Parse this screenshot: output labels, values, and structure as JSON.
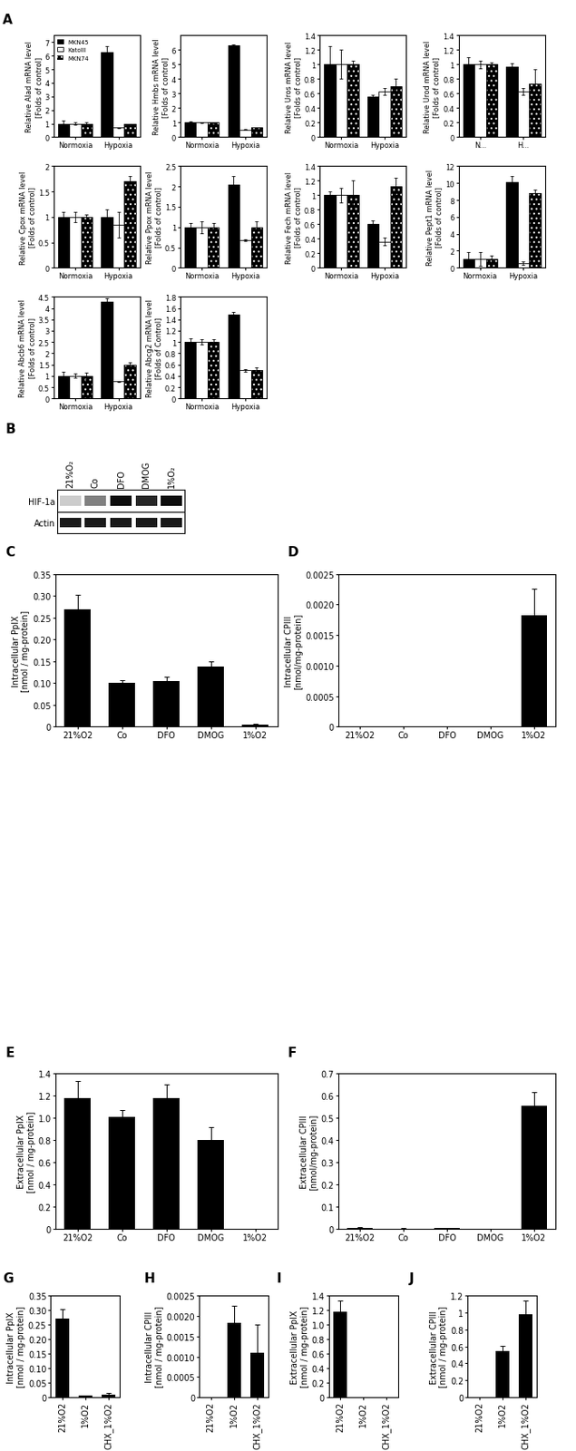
{
  "chart_data": [
    {
      "type": "bar",
      "categories": [
        "Normoxia",
        "Hypoxia"
      ],
      "ylabel": "Relative Alad mRNA level\n[Folds of control]",
      "ylim": [
        0,
        7.5
      ],
      "yticks": [
        0,
        1,
        2,
        3,
        4,
        5,
        6,
        7
      ],
      "legend": "upper left",
      "series": [
        {
          "name": "MKN45",
          "color": "#000000",
          "values": [
            1,
            6.3
          ],
          "errors": [
            0.2,
            0.4
          ]
        },
        {
          "name": "KatoIII",
          "color": "#ffffff",
          "values": [
            1,
            0.7
          ],
          "errors": [
            0.1,
            0.05
          ]
        },
        {
          "name": "MKN74",
          "color": "#000000",
          "values": [
            1,
            0.95
          ],
          "errors": [
            0.1,
            0.05
          ]
        }
      ]
    },
    {
      "type": "bar",
      "categories": [
        "Normoxia",
        "Hypoxia"
      ],
      "ylabel": "Relative Hmbs mRNA level\n[Folds of control]",
      "ylim": [
        0,
        7
      ],
      "yticks": [
        0,
        1,
        2,
        3,
        4,
        5,
        6
      ],
      "series": [
        {
          "color": "#000000",
          "values": [
            1,
            6.3
          ],
          "errors": [
            0.08,
            0.1
          ]
        },
        {
          "color": "#ffffff",
          "values": [
            1,
            0.5
          ],
          "errors": [
            0.05,
            0.03
          ]
        },
        {
          "color": "#000000",
          "values": [
            1,
            0.65
          ],
          "errors": [
            0.05,
            0.03
          ]
        }
      ]
    },
    {
      "type": "bar",
      "categories": [
        "Normoxia",
        "Hypoxia"
      ],
      "ylabel": "Relative Uros mRNA level\n[Folds of control]",
      "ylim": [
        0,
        1.4
      ],
      "yticks": [
        0,
        0.2,
        0.4,
        0.6,
        0.8,
        1,
        1.2,
        1.4
      ],
      "series": [
        {
          "color": "#000000",
          "values": [
            1,
            0.56
          ],
          "errors": [
            0.25,
            0.02
          ]
        },
        {
          "color": "#ffffff",
          "values": [
            1,
            0.63
          ],
          "errors": [
            0.2,
            0.05
          ]
        },
        {
          "color": "#000000",
          "values": [
            1,
            0.7
          ],
          "errors": [
            0.05,
            0.1
          ]
        }
      ]
    },
    {
      "type": "bar",
      "categories": [
        "N...",
        "H..."
      ],
      "ylabel": "Relative Urod mRNA level\n[Folds of control]",
      "ylim": [
        0,
        1.4
      ],
      "yticks": [
        0,
        0.2,
        0.4,
        0.6,
        0.8,
        1,
        1.2,
        1.4
      ],
      "series": [
        {
          "color": "#000000",
          "values": [
            1,
            0.97
          ],
          "errors": [
            0.1,
            0.05
          ]
        },
        {
          "color": "#ffffff",
          "values": [
            1,
            0.63
          ],
          "errors": [
            0.05,
            0.05
          ]
        },
        {
          "color": "#000000",
          "values": [
            1,
            0.73
          ],
          "errors": [
            0.03,
            0.2
          ]
        }
      ]
    },
    {
      "type": "bar",
      "categories": [
        "Normoxia",
        "Hypoxia"
      ],
      "ylabel": "Relative Cpox mRNA level\n[Folds of control]",
      "ylim": [
        0,
        2
      ],
      "yticks": [
        0,
        0.5,
        1,
        1.5,
        2
      ],
      "series": [
        {
          "color": "#000000",
          "values": [
            1,
            1
          ],
          "errors": [
            0.1,
            0.15
          ]
        },
        {
          "color": "#ffffff",
          "values": [
            1,
            0.85
          ],
          "errors": [
            0.1,
            0.25
          ]
        },
        {
          "color": "#000000",
          "values": [
            1,
            1.7
          ],
          "errors": [
            0.05,
            0.1
          ]
        }
      ]
    },
    {
      "type": "bar",
      "categories": [
        "Normoxia",
        "Hypoxia"
      ],
      "ylabel": "Relative Ppox mRNA level\n[Folds of control]",
      "ylim": [
        0,
        2.5
      ],
      "yticks": [
        0,
        0.5,
        1,
        1.5,
        2,
        2.5
      ],
      "series": [
        {
          "color": "#000000",
          "values": [
            1,
            2.05
          ],
          "errors": [
            0.1,
            0.2
          ]
        },
        {
          "color": "#ffffff",
          "values": [
            1,
            0.68
          ],
          "errors": [
            0.15,
            0.02
          ]
        },
        {
          "color": "#000000",
          "values": [
            1,
            1.0
          ],
          "errors": [
            0.1,
            0.15
          ]
        }
      ]
    },
    {
      "type": "bar",
      "categories": [
        "Normoxia",
        "Hypoxia"
      ],
      "ylabel": "Relative Fech mRNA level\n[Folds of control]",
      "ylim": [
        0,
        1.4
      ],
      "yticks": [
        0,
        0.2,
        0.4,
        0.6,
        0.8,
        1,
        1.2,
        1.4
      ],
      "series": [
        {
          "color": "#000000",
          "values": [
            1,
            0.6
          ],
          "errors": [
            0.05,
            0.05
          ]
        },
        {
          "color": "#ffffff",
          "values": [
            1,
            0.36
          ],
          "errors": [
            0.1,
            0.05
          ]
        },
        {
          "color": "#000000",
          "values": [
            1,
            1.12
          ],
          "errors": [
            0.2,
            0.12
          ]
        }
      ]
    },
    {
      "type": "bar",
      "categories": [
        "Normoxia",
        "Hypoxia"
      ],
      "ylabel": "Relative Pept1 mRNA level\n[Folds of control]",
      "ylim": [
        0,
        12
      ],
      "yticks": [
        0,
        2,
        4,
        6,
        8,
        10,
        12
      ],
      "series": [
        {
          "color": "#000000",
          "values": [
            1,
            10.1
          ],
          "errors": [
            0.8,
            0.7
          ]
        },
        {
          "color": "#ffffff",
          "values": [
            1,
            0.5
          ],
          "errors": [
            0.8,
            0.2
          ]
        },
        {
          "color": "#000000",
          "values": [
            1,
            8.8
          ],
          "errors": [
            0.4,
            0.4
          ]
        }
      ]
    },
    {
      "type": "bar",
      "categories": [
        "Normoxia",
        "Hypoxia"
      ],
      "ylabel": "Relative Abcb6 mRNA level\n[Folds of control]",
      "ylim": [
        0,
        4.5
      ],
      "yticks": [
        0,
        0.5,
        1,
        1.5,
        2,
        2.5,
        3,
        3.5,
        4,
        4.5
      ],
      "series": [
        {
          "color": "#000000",
          "values": [
            1,
            4.3
          ],
          "errors": [
            0.2,
            0.15
          ]
        },
        {
          "color": "#ffffff",
          "values": [
            1,
            0.75
          ],
          "errors": [
            0.1,
            0.03
          ]
        },
        {
          "color": "#000000",
          "values": [
            1,
            1.5
          ],
          "errors": [
            0.15,
            0.08
          ]
        }
      ]
    },
    {
      "type": "bar",
      "categories": [
        "Normoxia",
        "Hypoxia"
      ],
      "ylabel": "Relative Abcg2 mRNA level\n[Folds of Control]",
      "ylim": [
        0,
        1.8
      ],
      "yticks": [
        0,
        0.2,
        0.4,
        0.6,
        0.8,
        1,
        1.2,
        1.4,
        1.6,
        1.8
      ],
      "series": [
        {
          "color": "#000000",
          "values": [
            1,
            1.48
          ],
          "errors": [
            0.07,
            0.05
          ]
        },
        {
          "color": "#ffffff",
          "values": [
            1,
            0.5
          ],
          "errors": [
            0.05,
            0.02
          ]
        },
        {
          "color": "#000000",
          "values": [
            1,
            0.5
          ],
          "errors": [
            0.05,
            0.05
          ]
        }
      ]
    },
    {
      "type": "bar",
      "categories": [
        "21%O2",
        "Co",
        "DFO",
        "DMOG",
        "1%O2"
      ],
      "ylabel": "Intracellular PpIX\n[nmol / mg-protein]",
      "color": "#000000",
      "values": [
        0.27,
        0.1,
        0.105,
        0.138,
        0.005
      ],
      "errors": [
        0.033,
        0.007,
        0.01,
        0.012,
        0.002
      ],
      "ylim": [
        0,
        0.35
      ],
      "yticks": [
        0,
        0.05,
        {
          "value": 0.1,
          "label": "0.10"
        },
        0.15,
        {
          "value": 0.2,
          "label": "0.20"
        },
        0.25,
        {
          "value": 0.3,
          "label": "0.30"
        },
        0.35
      ]
    },
    {
      "type": "bar",
      "categories": [
        "21%O2",
        "Co",
        "DFO",
        "DMOG",
        "1%O2"
      ],
      "ylabel": "Intracellular CPIII\n[nmol/mg-protein]",
      "color": "#000000",
      "values": [
        0,
        0,
        0,
        0,
        0.00183
      ],
      "errors": [
        0,
        0,
        0,
        0,
        0.00043
      ],
      "ylim": [
        0,
        0.0025
      ],
      "yticks": [
        0,
        0.0005,
        {
          "value": 0.001,
          "label": "0.0010"
        },
        0.0015,
        {
          "value": 0.002,
          "label": "0.0020"
        },
        0.0025
      ]
    },
    {
      "type": "bar",
      "categories": [
        "21%O2",
        "Co",
        "DFO",
        "DMOG",
        "1%O2"
      ],
      "ylabel": "Extracellular PpIX\n[nmol / mg-protein]",
      "color": "#000000",
      "values": [
        1.18,
        1.01,
        1.18,
        0.8,
        0
      ],
      "errors": [
        0.15,
        0.06,
        0.12,
        0.12,
        0
      ],
      "ylim": [
        0,
        1.4
      ],
      "yticks": [
        0,
        0.2,
        0.4,
        0.6,
        0.8,
        {
          "value": 1,
          "label": "1.0"
        },
        1.2,
        1.4
      ]
    },
    {
      "type": "bar",
      "categories": [
        "21%O2",
        "Co",
        "DFO",
        "DMOG",
        "1%O2"
      ],
      "ylabel": "Extracellular CPIII\n[nmol/mg-protein]",
      "color": "#000000",
      "values": [
        0.005,
        0.002,
        0.003,
        0.001,
        0.555
      ],
      "errors": [
        0.003,
        0.001,
        0.001,
        0,
        0.06
      ],
      "ylim": [
        0,
        0.7
      ],
      "yticks": [
        0,
        0.1,
        0.2,
        0.3,
        0.4,
        0.5,
        0.6,
        0.7
      ]
    },
    {
      "type": "bar",
      "categories": [
        "21%O2",
        "1%O2",
        "CHX_1%O2"
      ],
      "ylabel": "Intracellular PpIX\n[nmol / mg-protein]",
      "color": "#000000",
      "values": [
        0.27,
        0.005,
        0.01
      ],
      "errors": [
        0.033,
        0.002,
        0.004
      ],
      "ylim": [
        0,
        0.35
      ],
      "yticks": [
        0,
        0.05,
        {
          "value": 0.1,
          "label": "0.10"
        },
        0.15,
        {
          "value": 0.2,
          "label": "0.20"
        },
        0.25,
        {
          "value": 0.3,
          "label": "0.30"
        },
        0.35
      ]
    },
    {
      "type": "bar",
      "categories": [
        "21%O2",
        "1%O2",
        "CHX_1%O2"
      ],
      "ylabel": "Intracellular CPIII\n[nmol / mg-protein]",
      "color": "#000000",
      "values": [
        0,
        0.00183,
        0.0011
      ],
      "errors": [
        0,
        0.00043,
        0.0007
      ],
      "ylim": [
        0,
        0.0025
      ],
      "yticks": [
        0,
        0.0005,
        {
          "value": 0.001,
          "label": "0.0010"
        },
        0.0015,
        {
          "value": 0.002,
          "label": "0.0020"
        },
        0.0025
      ]
    },
    {
      "type": "bar",
      "categories": [
        "21%O2",
        "1%O2",
        "CHX_1%O2"
      ],
      "ylabel": "Extracellular PpIX\n[nmol / mg-protein]",
      "color": "#000000",
      "values": [
        1.18,
        0,
        0
      ],
      "errors": [
        0.15,
        0,
        0
      ],
      "ylim": [
        0,
        1.4
      ],
      "yticks": [
        0,
        0.2,
        0.4,
        0.6,
        0.8,
        {
          "value": 1,
          "label": "1.0"
        },
        1.2,
        1.4
      ]
    },
    {
      "type": "bar",
      "categories": [
        "21%O2",
        "1%O2",
        "CHX_1%O2"
      ],
      "ylabel": "Extracellular CPIII\n[nmol / mg-protein]",
      "color": "#000000",
      "values": [
        0.003,
        0.55,
        0.98
      ],
      "errors": [
        0.002,
        0.06,
        0.16
      ],
      "ylim": [
        0,
        1.2
      ],
      "yticks": [
        0,
        0.2,
        0.4,
        0.6,
        0.8,
        1,
        1.2
      ]
    }
  ],
  "blot": {
    "lanes": [
      "21%O₂",
      "Co",
      "DFO",
      "DMOG",
      "1%O₂"
    ],
    "rows": [
      {
        "label": "HIF-1a",
        "band_intensity": [
          0.2,
          0.5,
          0.95,
          0.85,
          0.95
        ]
      },
      {
        "label": "Actin",
        "band_intensity": [
          0.9,
          0.9,
          0.9,
          0.9,
          0.9
        ]
      }
    ]
  },
  "panel_labels": [
    "A",
    "B",
    "C",
    "D",
    "E",
    "F",
    "G",
    "H",
    "I",
    "J"
  ]
}
